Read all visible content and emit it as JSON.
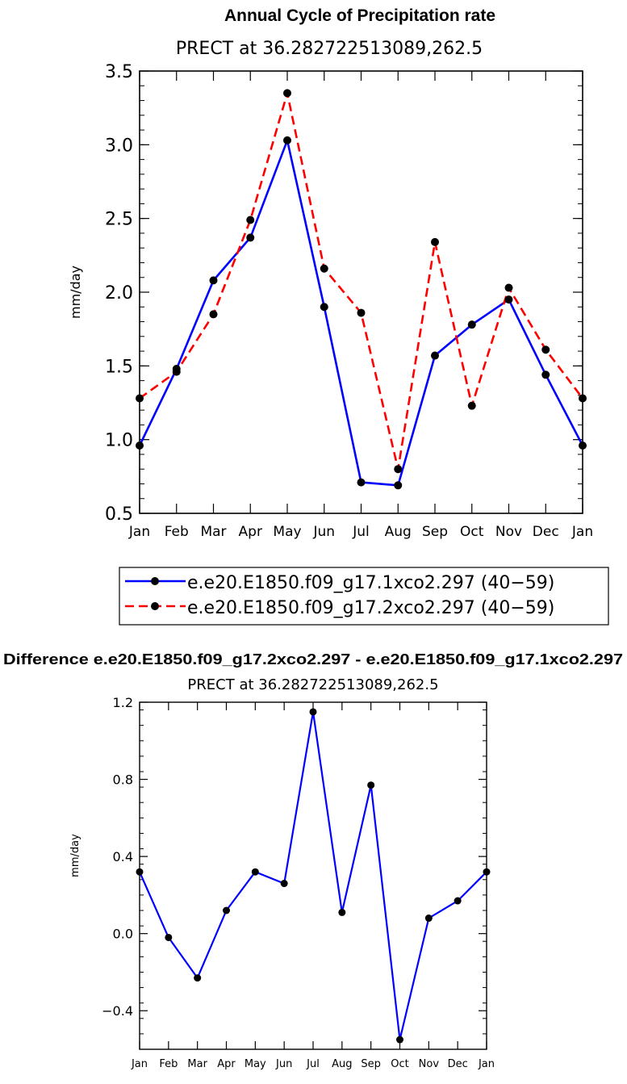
{
  "chart_data": [
    {
      "type": "line",
      "title": "Annual Cycle of Precipitation rate",
      "subtitle": "PRECT at 36.282722513089,262.5",
      "xlabel": "",
      "ylabel": "mm/day",
      "categories": [
        "Jan",
        "Feb",
        "Mar",
        "Apr",
        "May",
        "Jun",
        "Jul",
        "Aug",
        "Sep",
        "Oct",
        "Nov",
        "Dec",
        "Jan"
      ],
      "ylim": [
        0.5,
        3.5
      ],
      "yticks": [
        0.5,
        1.0,
        1.5,
        2.0,
        2.5,
        3.0,
        3.5
      ],
      "ytick_labels": [
        "0.5",
        "1.0",
        "1.5",
        "2.0",
        "2.5",
        "3.0",
        "3.5"
      ],
      "series": [
        {
          "name": "e.e20.E1850.f09_g17.1xco2.297 (40−59)",
          "color": "#0000ff",
          "dash": "solid",
          "values": [
            0.96,
            1.48,
            2.08,
            2.37,
            3.03,
            1.9,
            0.71,
            0.69,
            1.57,
            1.78,
            1.95,
            1.44,
            0.96
          ]
        },
        {
          "name": "e.e20.E1850.f09_g17.2xco2.297 (40−59)",
          "color": "#ff0000",
          "dash": "dashed",
          "values": [
            1.28,
            1.46,
            1.85,
            2.49,
            3.35,
            2.16,
            1.86,
            0.8,
            2.34,
            1.23,
            2.03,
            1.61,
            1.28
          ]
        }
      ]
    },
    {
      "type": "line",
      "title": "Difference e.e20.E1850.f09_g17.2xco2.297 - e.e20.E1850.f09_g17.1xco2.297",
      "subtitle": "PRECT at 36.282722513089,262.5",
      "xlabel": "",
      "ylabel": "mm/day",
      "categories": [
        "Jan",
        "Feb",
        "Mar",
        "Apr",
        "May",
        "Jun",
        "Jul",
        "Aug",
        "Sep",
        "Oct",
        "Nov",
        "Dec",
        "Jan"
      ],
      "ylim": [
        -0.6,
        1.2
      ],
      "yticks": [
        -0.4,
        0.0,
        0.4,
        0.8,
        1.2
      ],
      "ytick_labels": [
        "−0.4",
        "0.0",
        "0.4",
        "0.8",
        "1.2"
      ],
      "series": [
        {
          "name": "difference",
          "color": "#0000ff",
          "dash": "solid",
          "values": [
            0.32,
            -0.02,
            -0.23,
            0.12,
            0.32,
            0.26,
            1.15,
            0.11,
            0.77,
            -0.55,
            0.08,
            0.17,
            0.32
          ]
        }
      ]
    }
  ]
}
